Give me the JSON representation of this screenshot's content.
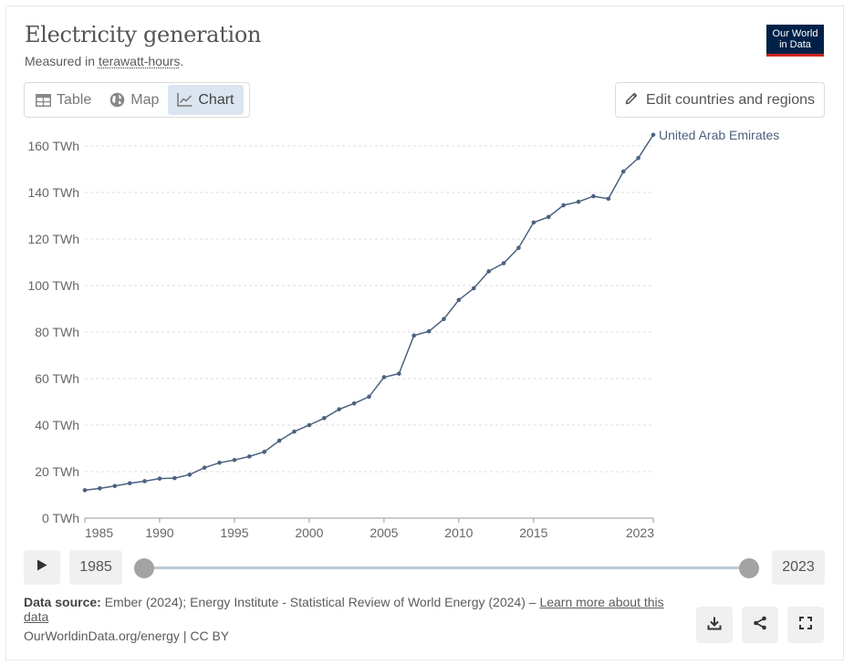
{
  "header": {
    "title": "Electricity generation",
    "subtitle_prefix": "Measured in ",
    "subtitle_unit": "terawatt-hours",
    "subtitle_suffix": ".",
    "logo_line1": "Our World",
    "logo_line2": "in Data"
  },
  "tabs": [
    {
      "label": "Table",
      "icon": "table-icon",
      "active": false
    },
    {
      "label": "Map",
      "icon": "globe-icon",
      "active": false
    },
    {
      "label": "Chart",
      "icon": "line-chart-icon",
      "active": true
    }
  ],
  "edit_button": {
    "label": "Edit countries and regions",
    "icon": "pencil-icon"
  },
  "timeline": {
    "start_year": "1985",
    "end_year": "2023",
    "play_icon": "play-icon"
  },
  "footer": {
    "source_label": "Data source:",
    "source_text": " Ember (2024); Energy Institute - Statistical Review of World Energy (2024) – ",
    "source_link": "Learn more about this data",
    "credit": "OurWorldinData.org/energy | CC BY"
  },
  "actions": [
    {
      "name": "download-button",
      "icon": "download-icon"
    },
    {
      "name": "share-button",
      "icon": "share-icon"
    },
    {
      "name": "fullscreen-button",
      "icon": "fullscreen-icon"
    }
  ],
  "colors": {
    "line": "#4c6180",
    "grid": "#dddddd",
    "accent_active_tab": "#dbe5f0",
    "logo_bg": "#002147",
    "logo_bar": "#ce261e"
  },
  "chart_data": {
    "type": "line",
    "title": "Electricity generation",
    "subtitle": "Measured in terawatt-hours.",
    "ylim": [
      0,
      160
    ],
    "y_ticks": [
      0,
      20,
      40,
      60,
      80,
      100,
      120,
      140,
      160
    ],
    "y_tick_labels": [
      "0 TWh",
      "20 TWh",
      "40 TWh",
      "60 TWh",
      "80 TWh",
      "100 TWh",
      "120 TWh",
      "140 TWh",
      "160 TWh"
    ],
    "xlim": [
      1985,
      2023
    ],
    "x_ticks": [
      1985,
      1990,
      1995,
      2000,
      2005,
      2010,
      2015,
      2023
    ],
    "x_tick_labels": [
      "1985",
      "1990",
      "1995",
      "2000",
      "2005",
      "2010",
      "2015",
      "2023"
    ],
    "grid": "horizontal dashed",
    "legend": "end-of-line label",
    "series": [
      {
        "name": "United Arab Emirates",
        "x": [
          1985,
          1986,
          1987,
          1988,
          1989,
          1990,
          1991,
          1992,
          1993,
          1994,
          1995,
          1996,
          1997,
          1998,
          1999,
          2000,
          2001,
          2002,
          2003,
          2004,
          2005,
          2006,
          2007,
          2008,
          2009,
          2010,
          2011,
          2012,
          2013,
          2014,
          2015,
          2016,
          2017,
          2018,
          2019,
          2020,
          2021,
          2022,
          2023
        ],
        "values": [
          12.0,
          12.8,
          13.8,
          15.0,
          15.9,
          17.0,
          17.2,
          18.7,
          21.7,
          23.8,
          25.0,
          26.5,
          28.5,
          33.3,
          37.2,
          40.0,
          43.0,
          46.8,
          49.3,
          52.2,
          60.6,
          62.1,
          78.5,
          80.3,
          85.6,
          93.8,
          98.8,
          106.1,
          109.6,
          116.2,
          127.1,
          129.5,
          134.5,
          136.0,
          138.4,
          137.3,
          149.0,
          154.8,
          164.8
        ]
      }
    ]
  }
}
